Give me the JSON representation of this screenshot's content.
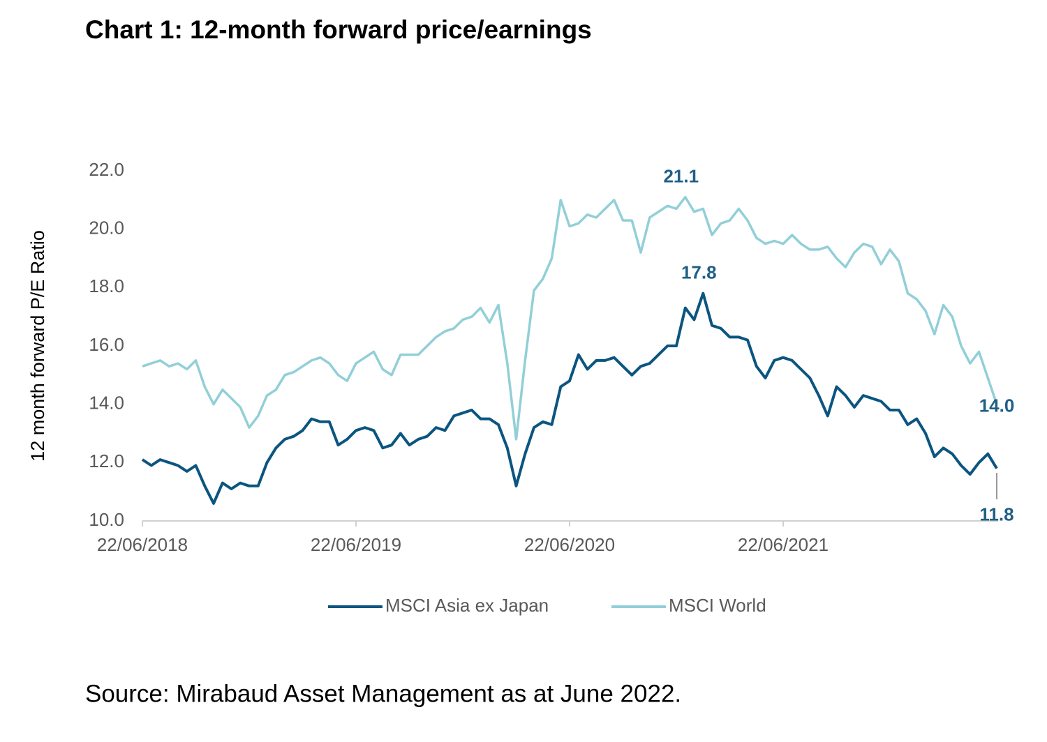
{
  "chart_data": {
    "type": "line",
    "title": "Chart 1: 12-month forward price/earnings",
    "y_label": "12 month forward P/E Ratio",
    "source": "Source: Mirabaud Asset Management as at June 2022.",
    "categories": [
      "22/06/2018",
      null,
      null,
      null,
      null,
      null,
      null,
      null,
      null,
      null,
      null,
      null,
      null,
      null,
      null,
      null,
      null,
      null,
      null,
      null,
      null,
      null,
      null,
      null,
      "22/06/2019",
      null,
      null,
      null,
      null,
      null,
      null,
      null,
      null,
      null,
      null,
      null,
      null,
      null,
      null,
      null,
      null,
      null,
      null,
      null,
      null,
      null,
      null,
      null,
      "22/06/2020",
      null,
      null,
      null,
      null,
      null,
      null,
      null,
      null,
      null,
      null,
      null,
      null,
      null,
      null,
      null,
      null,
      null,
      null,
      null,
      null,
      null,
      null,
      null,
      "22/06/2021",
      null,
      null,
      null,
      null,
      null,
      null,
      null,
      null,
      null,
      null,
      null,
      null,
      null,
      null,
      null,
      null,
      null,
      null,
      null,
      null,
      null,
      null,
      null,
      null
    ],
    "series": [
      {
        "name": "MSCI Asia ex Japan",
        "color": "#0b5580",
        "values": [
          12.1,
          11.9,
          12.1,
          12.0,
          11.9,
          11.7,
          11.9,
          11.2,
          10.6,
          11.3,
          11.1,
          11.3,
          11.2,
          11.2,
          12.0,
          12.5,
          12.8,
          12.9,
          13.1,
          13.5,
          13.4,
          13.4,
          12.6,
          12.8,
          13.1,
          13.2,
          13.1,
          12.5,
          12.6,
          13.0,
          12.6,
          12.8,
          12.9,
          13.2,
          13.1,
          13.6,
          13.7,
          13.8,
          13.5,
          13.5,
          13.3,
          12.5,
          11.2,
          12.3,
          13.2,
          13.4,
          13.3,
          14.6,
          14.8,
          15.7,
          15.2,
          15.5,
          15.5,
          15.6,
          15.3,
          15.0,
          15.3,
          15.4,
          15.7,
          16.0,
          16.0,
          17.3,
          16.9,
          17.8,
          16.7,
          16.6,
          16.3,
          16.3,
          16.2,
          15.3,
          14.9,
          15.5,
          15.6,
          15.5,
          15.2,
          14.9,
          14.3,
          13.6,
          14.6,
          14.3,
          13.9,
          14.3,
          14.2,
          14.1,
          13.8,
          13.8,
          13.3,
          13.5,
          13.0,
          12.2,
          12.5,
          12.3,
          11.9,
          11.6,
          12.0,
          12.3,
          11.8
        ],
        "value_labels": [
          null,
          null,
          null,
          null,
          null,
          null,
          null,
          null,
          null,
          null,
          null,
          null,
          null,
          null,
          null,
          null,
          null,
          null,
          null,
          null,
          null,
          null,
          null,
          null,
          null,
          null,
          null,
          null,
          null,
          null,
          null,
          null,
          null,
          null,
          null,
          null,
          null,
          null,
          null,
          null,
          null,
          null,
          null,
          null,
          null,
          null,
          null,
          null,
          null,
          null,
          null,
          null,
          null,
          null,
          null,
          null,
          null,
          null,
          null,
          null,
          null,
          null,
          null,
          "17.8",
          null,
          null,
          null,
          null,
          null,
          null,
          null,
          null,
          null,
          null,
          null,
          null,
          null,
          null,
          null,
          null,
          null,
          null,
          null,
          null,
          null,
          null,
          null,
          null,
          null,
          null,
          null,
          null,
          null,
          null,
          null,
          null,
          "11.8"
        ]
      },
      {
        "name": "MSCI World",
        "color": "#92cfd8",
        "values": [
          15.3,
          15.4,
          15.5,
          15.3,
          15.4,
          15.2,
          15.5,
          14.6,
          14.0,
          14.5,
          14.2,
          13.9,
          13.2,
          13.6,
          14.3,
          14.5,
          15.0,
          15.1,
          15.3,
          15.5,
          15.6,
          15.4,
          15.0,
          14.8,
          15.4,
          15.6,
          15.8,
          15.2,
          15.0,
          15.7,
          15.7,
          15.7,
          16.0,
          16.3,
          16.5,
          16.6,
          16.9,
          17.0,
          17.3,
          16.8,
          17.4,
          15.4,
          12.8,
          15.5,
          17.9,
          18.3,
          19.0,
          21.0,
          20.1,
          20.2,
          20.5,
          20.4,
          20.7,
          21.0,
          20.3,
          20.3,
          19.2,
          20.4,
          20.6,
          20.8,
          20.7,
          21.1,
          20.6,
          20.7,
          19.8,
          20.2,
          20.3,
          20.7,
          20.3,
          19.7,
          19.5,
          19.6,
          19.5,
          19.8,
          19.5,
          19.3,
          19.3,
          19.4,
          19.0,
          18.7,
          19.2,
          19.5,
          19.4,
          18.8,
          19.3,
          18.9,
          17.8,
          17.6,
          17.2,
          16.4,
          17.4,
          17.0,
          16.0,
          15.4,
          15.8,
          14.9,
          14.0
        ],
        "value_labels": [
          null,
          null,
          null,
          null,
          null,
          null,
          null,
          null,
          null,
          null,
          null,
          null,
          null,
          null,
          null,
          null,
          null,
          null,
          null,
          null,
          null,
          null,
          null,
          null,
          null,
          null,
          null,
          null,
          null,
          null,
          null,
          null,
          null,
          null,
          null,
          null,
          null,
          null,
          null,
          null,
          null,
          null,
          null,
          null,
          null,
          null,
          null,
          null,
          null,
          null,
          null,
          null,
          null,
          null,
          null,
          null,
          null,
          null,
          null,
          null,
          null,
          "21.1",
          null,
          null,
          null,
          null,
          null,
          null,
          null,
          null,
          null,
          null,
          null,
          null,
          null,
          null,
          null,
          null,
          null,
          null,
          null,
          null,
          null,
          null,
          null,
          null,
          null,
          null,
          null,
          null,
          null,
          null,
          null,
          null,
          null,
          null,
          "14.0"
        ]
      }
    ],
    "ylim": [
      10,
      22
    ],
    "yticks": [
      {
        "value": 10,
        "label": "10.0"
      },
      {
        "value": 12,
        "label": "12.0"
      },
      {
        "value": 14,
        "label": "14.0"
      },
      {
        "value": 16,
        "label": "16.0"
      },
      {
        "value": 18,
        "label": "18.0"
      },
      {
        "value": 20,
        "label": "20.0"
      },
      {
        "value": 22,
        "label": "22.0"
      }
    ],
    "grid": false,
    "legend": "bottom"
  }
}
